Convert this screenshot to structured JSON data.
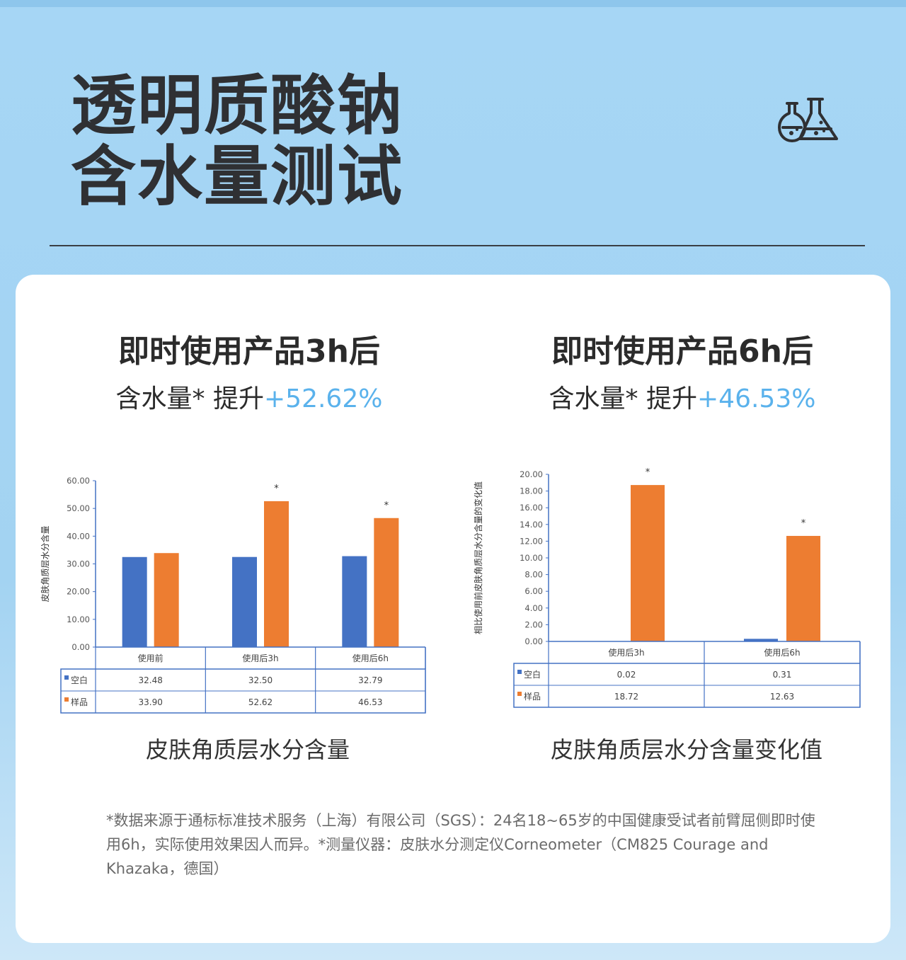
{
  "title_lines": [
    "透明质酸钠",
    "含水量测试"
  ],
  "icons": {
    "header_icon": "lab-flasks-icon"
  },
  "panels": [
    {
      "heading": "即时使用产品3h后",
      "sub_prefix": "含水量* 提升",
      "sub_pct": "+52.62%"
    },
    {
      "heading": "即时使用产品6h后",
      "sub_prefix": "含水量* 提升",
      "sub_pct": "+46.53%"
    }
  ],
  "footnote": "*数据来源于通标标准技术服务（上海）有限公司（SGS）：24名18~65岁的中国健康受试者前臂屈侧即时使用6h，实际使用效果因人而异。*测量仪器：皮肤水分测定仪Corneometer（CM825 Courage and Khazaka，德国）",
  "colors": {
    "blank": "#4472c4",
    "sample": "#ed7d31",
    "accent": "#5ab2ec",
    "table_border": "#4472c4"
  },
  "chart_data": [
    {
      "type": "bar",
      "title": "皮肤角质层水分含量",
      "ylabel": "皮肤角质层水分含量",
      "ylim": [
        0,
        60
      ],
      "yticks": [
        "0.00",
        "10.00",
        "20.00",
        "30.00",
        "40.00",
        "50.00",
        "60.00"
      ],
      "categories": [
        "使用前",
        "使用后3h",
        "使用后6h"
      ],
      "series": [
        {
          "name": "空白",
          "values": [
            32.48,
            32.5,
            32.79
          ],
          "labels": [
            "32.48",
            "32.50",
            "32.79"
          ]
        },
        {
          "name": "样品",
          "values": [
            33.9,
            52.62,
            46.53
          ],
          "labels": [
            "33.90",
            "52.62",
            "46.53"
          ]
        }
      ],
      "markers": [
        "",
        "*",
        "*"
      ],
      "grid": false,
      "legend": "data-table"
    },
    {
      "type": "bar",
      "title": "皮肤角质层水分含量变化值",
      "ylabel": "相比使用前皮肤角质层水分含量的变化值",
      "ylim": [
        0,
        20
      ],
      "yticks": [
        "0.00",
        "2.00",
        "4.00",
        "6.00",
        "8.00",
        "10.00",
        "12.00",
        "14.00",
        "16.00",
        "18.00",
        "20.00"
      ],
      "categories": [
        "使用后3h",
        "使用后6h"
      ],
      "series": [
        {
          "name": "空白",
          "values": [
            0.02,
            0.31
          ],
          "labels": [
            "0.02",
            "0.31"
          ]
        },
        {
          "name": "样品",
          "values": [
            18.72,
            12.63
          ],
          "labels": [
            "18.72",
            "12.63"
          ]
        }
      ],
      "markers": [
        "*",
        "*"
      ],
      "grid": false,
      "legend": "data-table"
    }
  ]
}
